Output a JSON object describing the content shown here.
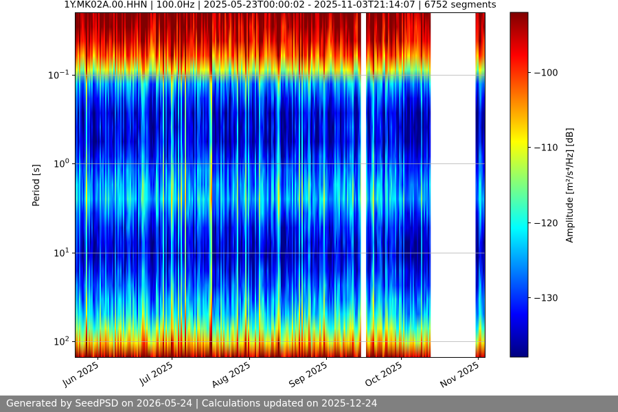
{
  "chart_data": {
    "type": "heatmap",
    "title": "1Y.MK02A.00.HHN | 100.0Hz | 2025-05-23T00:00:02 - 2025-11-03T21:14:07 | 6752 segments",
    "ylabel": "Period [s]",
    "y_scale": "log",
    "y_axis_inverted": true,
    "ylim": [
      0.02,
      150
    ],
    "y_ticks": [
      {
        "value": 0.1,
        "base": "10",
        "exp": "−1"
      },
      {
        "value": 1,
        "base": "10",
        "exp": "0"
      },
      {
        "value": 10,
        "base": "10",
        "exp": "1"
      },
      {
        "value": 100,
        "base": "10",
        "exp": "2"
      }
    ],
    "xlim": [
      "2025-05-23",
      "2025-11-04"
    ],
    "x_ticks": [
      {
        "date": "2025-06-01",
        "label": "Jun 2025"
      },
      {
        "date": "2025-07-01",
        "label": "Jul 2025"
      },
      {
        "date": "2025-08-01",
        "label": "Aug 2025"
      },
      {
        "date": "2025-09-01",
        "label": "Sep 2025"
      },
      {
        "date": "2025-10-01",
        "label": "Oct 2025"
      },
      {
        "date": "2025-11-01",
        "label": "Nov 2025"
      }
    ],
    "data_gaps": [
      [
        "2025-09-15",
        "2025-09-17"
      ],
      [
        "2025-10-13",
        "2025-10-31"
      ]
    ],
    "grid": "horizontal",
    "colormap": "jet",
    "colorbar": {
      "label": "Amplitude [m²/s⁴/Hz] [dB]",
      "range": [
        -138,
        -92
      ],
      "ticks": [
        -100,
        -110,
        -120,
        -130
      ]
    },
    "amplitude_profile": [
      {
        "period": 0.02,
        "amplitude": -92
      },
      {
        "period": 0.04,
        "amplitude": -96
      },
      {
        "period": 0.06,
        "amplitude": -102
      },
      {
        "period": 0.09,
        "amplitude": -112
      },
      {
        "period": 0.13,
        "amplitude": -126
      },
      {
        "period": 0.25,
        "amplitude": -134
      },
      {
        "period": 0.6,
        "amplitude": -134
      },
      {
        "period": 1.2,
        "amplitude": -128
      },
      {
        "period": 2.5,
        "amplitude": -124
      },
      {
        "period": 5,
        "amplitude": -131
      },
      {
        "period": 10,
        "amplitude": -135
      },
      {
        "period": 20,
        "amplitude": -130
      },
      {
        "period": 50,
        "amplitude": -122
      },
      {
        "period": 80,
        "amplitude": -114
      },
      {
        "period": 120,
        "amplitude": -104
      },
      {
        "period": 150,
        "amplitude": -94
      }
    ]
  },
  "footer": {
    "text": "Generated by SeedPSD on 2026-05-24 | Calculations updated on 2025-12-24"
  }
}
